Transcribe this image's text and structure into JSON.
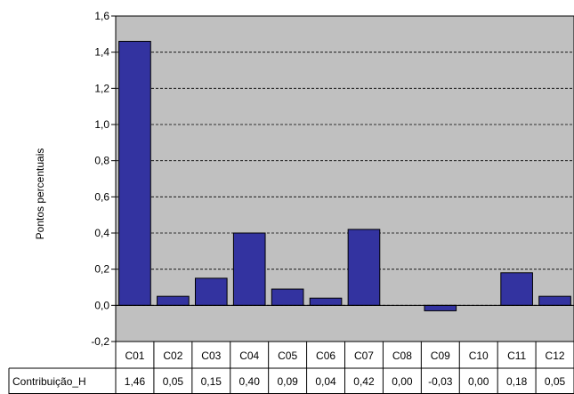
{
  "chart_data": {
    "type": "bar",
    "title": "",
    "xlabel": "",
    "ylabel": "Pontos percentuais",
    "ylim": [
      -0.2,
      1.6
    ],
    "yticks": [
      "-0,2",
      "0,0",
      "0,2",
      "0,4",
      "0,6",
      "0,8",
      "1,0",
      "1,2",
      "1,4",
      "1,6"
    ],
    "grid": true,
    "categories": [
      "C01",
      "C02",
      "C03",
      "C04",
      "C05",
      "C06",
      "C07",
      "C08",
      "C09",
      "C10",
      "C11",
      "C12"
    ],
    "series": [
      {
        "name": "Contribuição_H",
        "values": [
          1.46,
          0.05,
          0.15,
          0.4,
          0.09,
          0.04,
          0.42,
          0.0,
          -0.03,
          0.0,
          0.18,
          0.05
        ],
        "labels": [
          "1,46",
          "0,05",
          "0,15",
          "0,40",
          "0,09",
          "0,04",
          "0,42",
          "0,00",
          "-0,03",
          "0,00",
          "0,18",
          "0,05"
        ]
      }
    ],
    "colors": {
      "bar": "#3333a0",
      "plot_bg": "#c0c0c0",
      "grid": "#000000"
    }
  }
}
